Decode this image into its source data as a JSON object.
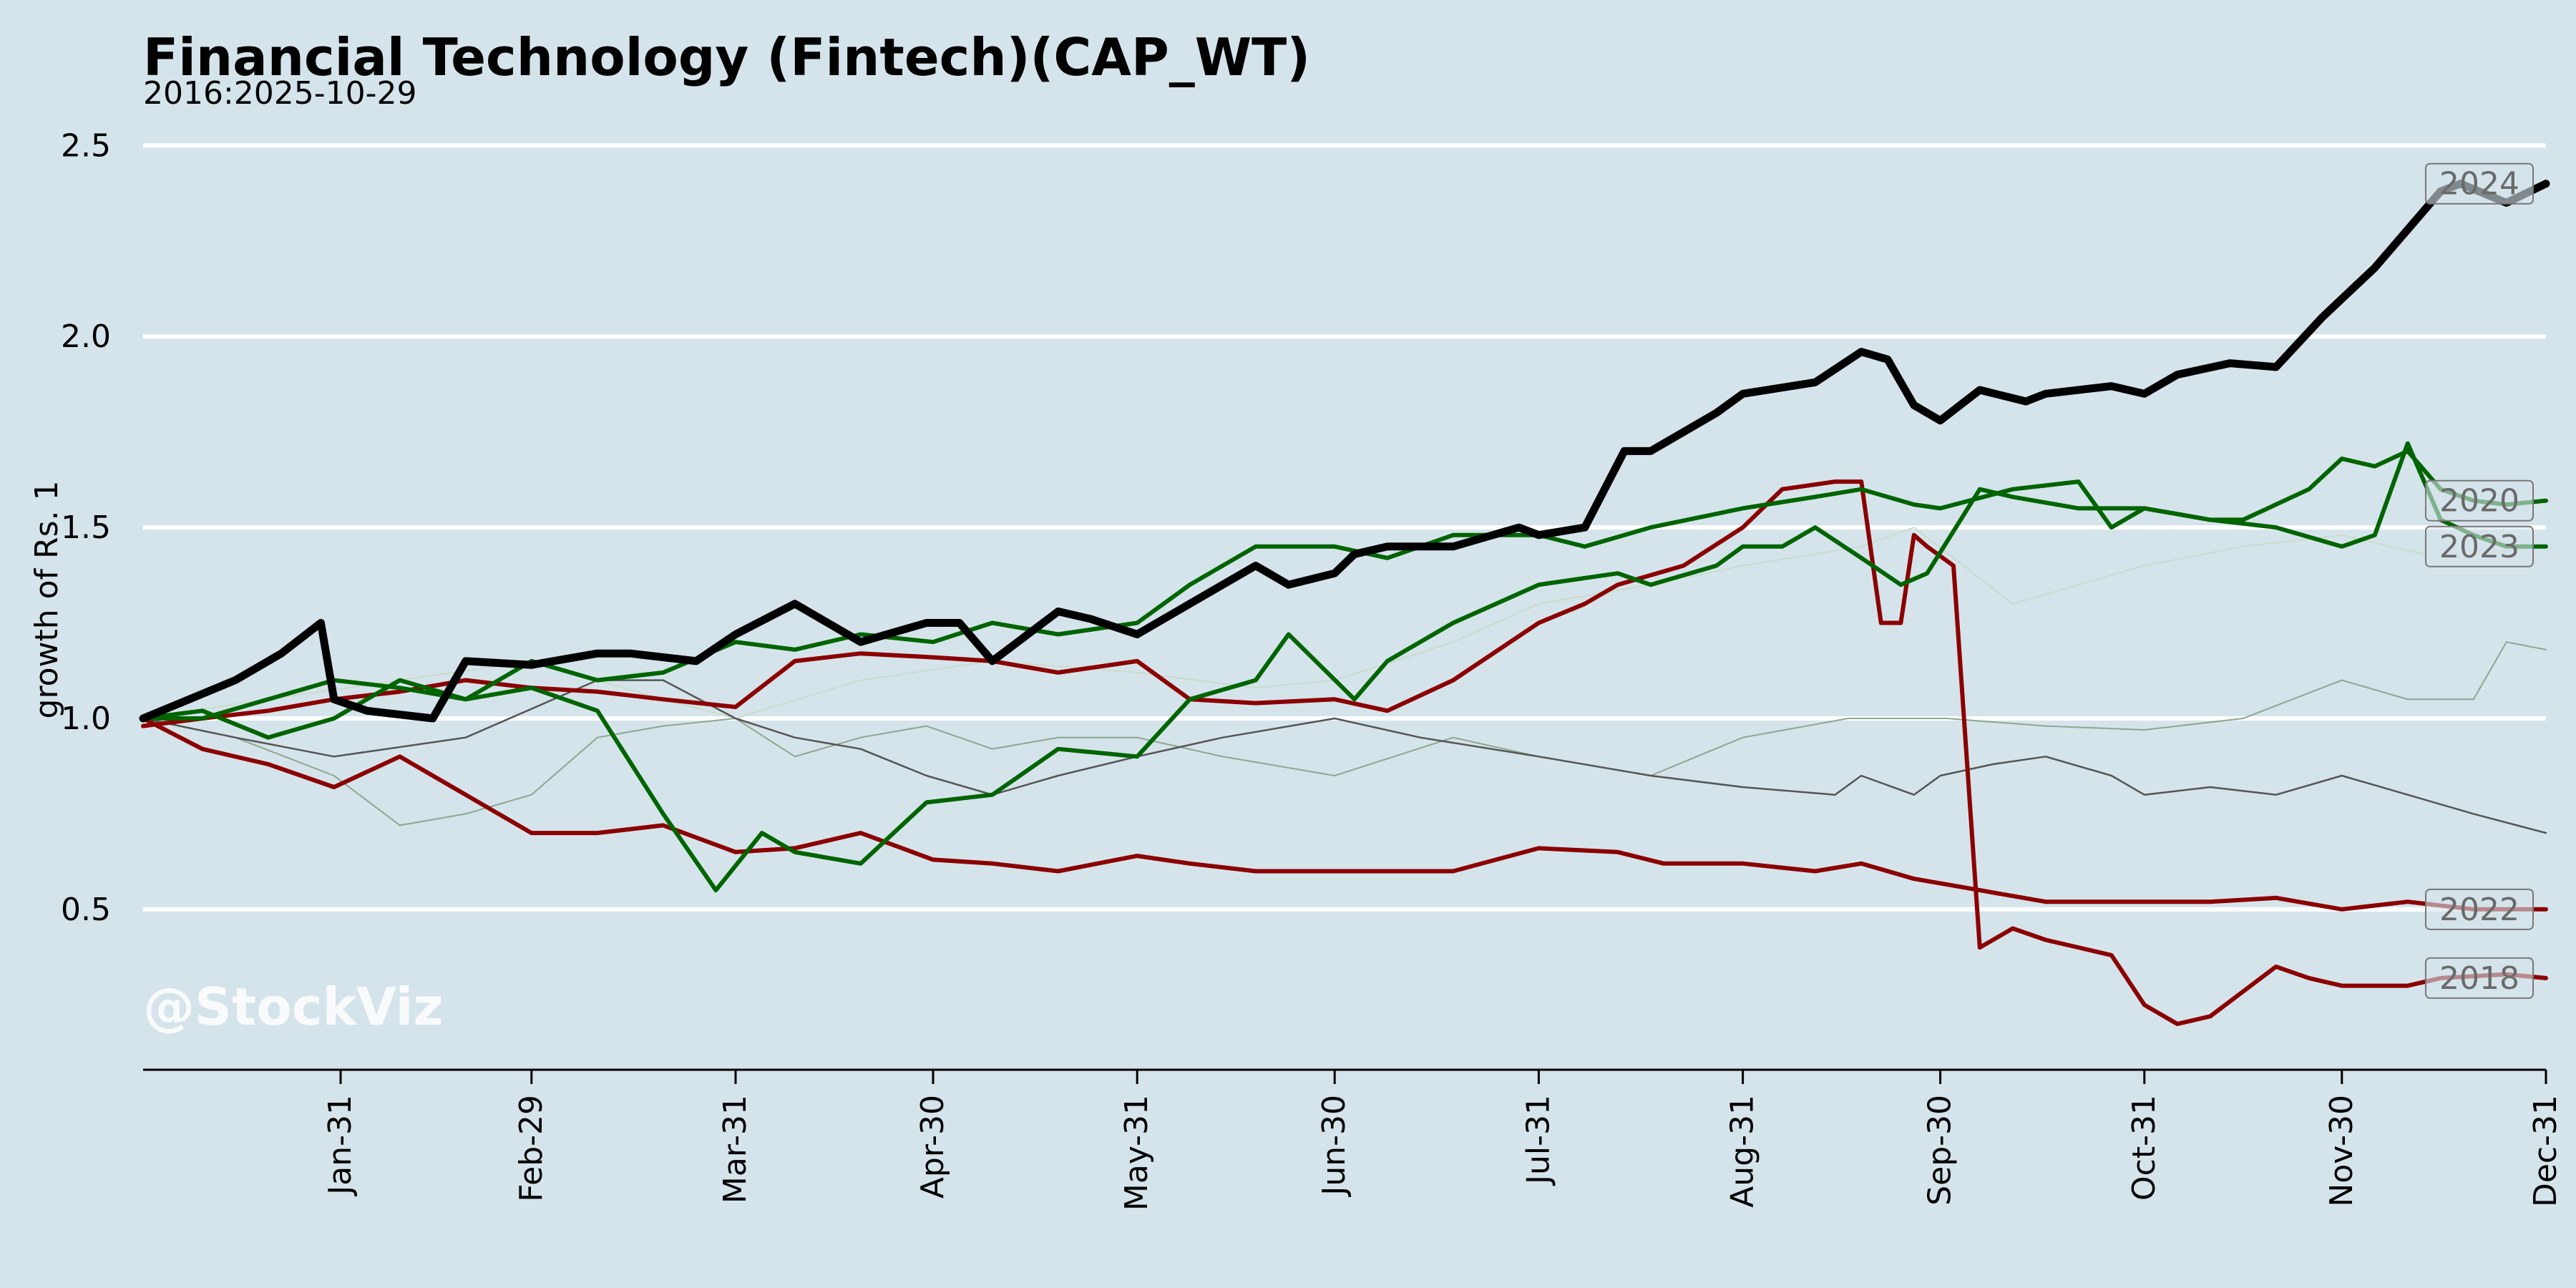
{
  "chart_data": {
    "type": "line",
    "title": "Financial Technology (Fintech)(CAP_WT)",
    "subtitle": "2016:2025-10-29",
    "ylabel": "growth of Rs. 1",
    "watermark": "@StockViz",
    "ylim": [
      0.08,
      2.6
    ],
    "yticks": [
      "0.5",
      "1.0",
      "1.5",
      "2.0",
      "2.5"
    ],
    "ytick_values": [
      0.5,
      1.0,
      1.5,
      2.0,
      2.5
    ],
    "xticks": [
      "Jan-31",
      "Feb-29",
      "Mar-31",
      "Apr-30",
      "May-31",
      "Jun-30",
      "Jul-31",
      "Aug-31",
      "Sep-30",
      "Oct-31",
      "Nov-30",
      "Dec-31"
    ],
    "xtick_days": [
      31,
      60,
      91,
      121,
      152,
      182,
      213,
      244,
      274,
      305,
      335,
      366
    ],
    "xlim": [
      1,
      366
    ],
    "grid": "horizontal",
    "colors": {
      "background": "#d5e4eb",
      "grid": "#ffffff",
      "highlight": "#000000",
      "up": "#006400",
      "down": "#8b0000"
    },
    "series": [
      {
        "name": "2024",
        "color": "#000000",
        "labeled": true,
        "x": [
          1,
          8,
          15,
          22,
          28,
          30,
          35,
          45,
          50,
          60,
          70,
          75,
          85,
          91,
          100,
          105,
          110,
          120,
          125,
          130,
          140,
          145,
          152,
          160,
          170,
          175,
          182,
          185,
          190,
          200,
          210,
          213,
          220,
          226,
          230,
          240,
          244,
          255,
          262,
          266,
          270,
          274,
          280,
          287,
          290,
          300,
          305,
          310,
          318,
          325,
          332,
          340,
          345,
          350,
          353,
          360,
          366
        ],
        "values": [
          1.0,
          1.05,
          1.1,
          1.17,
          1.25,
          1.05,
          1.02,
          1.0,
          1.15,
          1.14,
          1.17,
          1.17,
          1.15,
          1.22,
          1.3,
          1.25,
          1.2,
          1.25,
          1.25,
          1.15,
          1.28,
          1.26,
          1.22,
          1.3,
          1.4,
          1.35,
          1.38,
          1.43,
          1.45,
          1.45,
          1.5,
          1.48,
          1.5,
          1.7,
          1.7,
          1.8,
          1.85,
          1.88,
          1.96,
          1.94,
          1.82,
          1.78,
          1.86,
          1.83,
          1.85,
          1.87,
          1.85,
          1.9,
          1.93,
          1.92,
          2.05,
          2.18,
          2.28,
          2.38,
          2.4,
          2.35,
          2.4
        ]
      },
      {
        "name": "2020",
        "color": "#006400",
        "labeled": true,
        "x": [
          1,
          10,
          20,
          30,
          40,
          50,
          60,
          70,
          80,
          88,
          95,
          100,
          110,
          120,
          130,
          140,
          152,
          160,
          170,
          175,
          185,
          190,
          200,
          213,
          225,
          230,
          240,
          244,
          250,
          255,
          262,
          268,
          272,
          280,
          285,
          295,
          305,
          315,
          320,
          330,
          335,
          340,
          345,
          350,
          355,
          360,
          366
        ],
        "values": [
          1.0,
          1.02,
          0.95,
          1.0,
          1.1,
          1.05,
          1.08,
          1.02,
          0.75,
          0.55,
          0.7,
          0.65,
          0.62,
          0.78,
          0.8,
          0.92,
          0.9,
          1.05,
          1.1,
          1.22,
          1.05,
          1.15,
          1.25,
          1.35,
          1.38,
          1.35,
          1.4,
          1.45,
          1.45,
          1.5,
          1.42,
          1.35,
          1.38,
          1.6,
          1.58,
          1.55,
          1.55,
          1.52,
          1.52,
          1.6,
          1.68,
          1.66,
          1.7,
          1.6,
          1.57,
          1.56,
          1.57
        ]
      },
      {
        "name": "2023",
        "color": "#006400",
        "labeled": true,
        "x": [
          1,
          10,
          20,
          30,
          40,
          50,
          60,
          70,
          80,
          91,
          100,
          110,
          121,
          130,
          140,
          152,
          160,
          170,
          182,
          190,
          200,
          213,
          220,
          230,
          244,
          255,
          262,
          270,
          274,
          285,
          295,
          300,
          305,
          315,
          325,
          335,
          340,
          345,
          350,
          355,
          360,
          366
        ],
        "values": [
          1.0,
          1.0,
          1.05,
          1.1,
          1.08,
          1.05,
          1.15,
          1.1,
          1.12,
          1.2,
          1.18,
          1.22,
          1.2,
          1.25,
          1.22,
          1.25,
          1.35,
          1.45,
          1.45,
          1.42,
          1.48,
          1.48,
          1.45,
          1.5,
          1.55,
          1.58,
          1.6,
          1.56,
          1.55,
          1.6,
          1.62,
          1.5,
          1.55,
          1.52,
          1.5,
          1.45,
          1.48,
          1.72,
          1.52,
          1.48,
          1.45,
          1.45
        ]
      },
      {
        "name": "2022",
        "color": "#8b0000",
        "labeled": true,
        "x": [
          1,
          10,
          20,
          30,
          40,
          50,
          60,
          70,
          80,
          91,
          100,
          110,
          121,
          130,
          140,
          152,
          160,
          170,
          182,
          190,
          200,
          213,
          225,
          232,
          244,
          255,
          262,
          270,
          280,
          290,
          305,
          315,
          325,
          335,
          345,
          355,
          360,
          366
        ],
        "values": [
          1.0,
          0.92,
          0.88,
          0.82,
          0.9,
          0.8,
          0.7,
          0.7,
          0.72,
          0.65,
          0.66,
          0.7,
          0.63,
          0.62,
          0.6,
          0.64,
          0.62,
          0.6,
          0.6,
          0.6,
          0.6,
          0.66,
          0.65,
          0.62,
          0.62,
          0.6,
          0.62,
          0.58,
          0.55,
          0.52,
          0.52,
          0.52,
          0.53,
          0.5,
          0.52,
          0.5,
          0.5,
          0.5
        ]
      },
      {
        "name": "2018",
        "color": "#8b0000",
        "labeled": true,
        "x": [
          1,
          10,
          20,
          30,
          40,
          50,
          60,
          70,
          80,
          91,
          100,
          110,
          121,
          130,
          140,
          152,
          160,
          170,
          182,
          190,
          200,
          213,
          220,
          225,
          235,
          244,
          250,
          258,
          262,
          265,
          268,
          270,
          272,
          276,
          280,
          285,
          290,
          300,
          305,
          310,
          315,
          325,
          330,
          335,
          345,
          350,
          360,
          366
        ],
        "values": [
          0.98,
          1.0,
          1.02,
          1.05,
          1.07,
          1.1,
          1.08,
          1.07,
          1.05,
          1.03,
          1.15,
          1.17,
          1.16,
          1.15,
          1.12,
          1.15,
          1.05,
          1.04,
          1.05,
          1.02,
          1.1,
          1.25,
          1.3,
          1.35,
          1.4,
          1.5,
          1.6,
          1.62,
          1.62,
          1.25,
          1.25,
          1.48,
          1.45,
          1.4,
          0.4,
          0.45,
          0.42,
          0.38,
          0.25,
          0.2,
          0.22,
          0.35,
          0.32,
          0.3,
          0.3,
          0.32,
          0.33,
          0.32
        ]
      },
      {
        "name": "",
        "color": "#555555",
        "labeled": false,
        "x": [
          1,
          15,
          30,
          50,
          70,
          80,
          91,
          100,
          110,
          120,
          130,
          140,
          152,
          165,
          182,
          195,
          213,
          230,
          244,
          258,
          262,
          270,
          274,
          282,
          290,
          300,
          305,
          315,
          325,
          335,
          345,
          355,
          366
        ],
        "values": [
          1.0,
          0.95,
          0.9,
          0.95,
          1.1,
          1.1,
          1.0,
          0.95,
          0.92,
          0.85,
          0.8,
          0.85,
          0.9,
          0.95,
          1.0,
          0.95,
          0.9,
          0.85,
          0.82,
          0.8,
          0.85,
          0.8,
          0.85,
          0.88,
          0.9,
          0.85,
          0.8,
          0.82,
          0.8,
          0.85,
          0.8,
          0.75,
          0.7
        ]
      },
      {
        "name": "",
        "color": "#8fa58f",
        "labeled": false,
        "x": [
          1,
          15,
          30,
          40,
          50,
          60,
          70,
          80,
          91,
          100,
          110,
          120,
          130,
          140,
          152,
          165,
          182,
          200,
          213,
          230,
          244,
          260,
          275,
          290,
          305,
          320,
          335,
          345,
          355,
          360,
          366
        ],
        "values": [
          1.0,
          0.95,
          0.85,
          0.72,
          0.75,
          0.8,
          0.95,
          0.98,
          1.0,
          0.9,
          0.95,
          0.98,
          0.92,
          0.95,
          0.95,
          0.9,
          0.85,
          0.95,
          0.9,
          0.85,
          0.95,
          1.0,
          1.0,
          0.98,
          0.97,
          1.0,
          1.1,
          1.05,
          1.05,
          1.2,
          1.18
        ]
      },
      {
        "name": "",
        "color": "#c9dccd",
        "labeled": false,
        "x": [
          1,
          20,
          40,
          60,
          80,
          91,
          110,
          130,
          152,
          170,
          182,
          200,
          213,
          230,
          244,
          262,
          270,
          285,
          305,
          320,
          335,
          350,
          366
        ],
        "values": [
          1.0,
          1.05,
          1.1,
          1.15,
          1.05,
          1.0,
          1.1,
          1.15,
          1.12,
          1.08,
          1.1,
          1.2,
          1.3,
          1.35,
          1.4,
          1.45,
          1.5,
          1.3,
          1.4,
          1.45,
          1.48,
          1.42,
          1.45
        ]
      }
    ]
  }
}
